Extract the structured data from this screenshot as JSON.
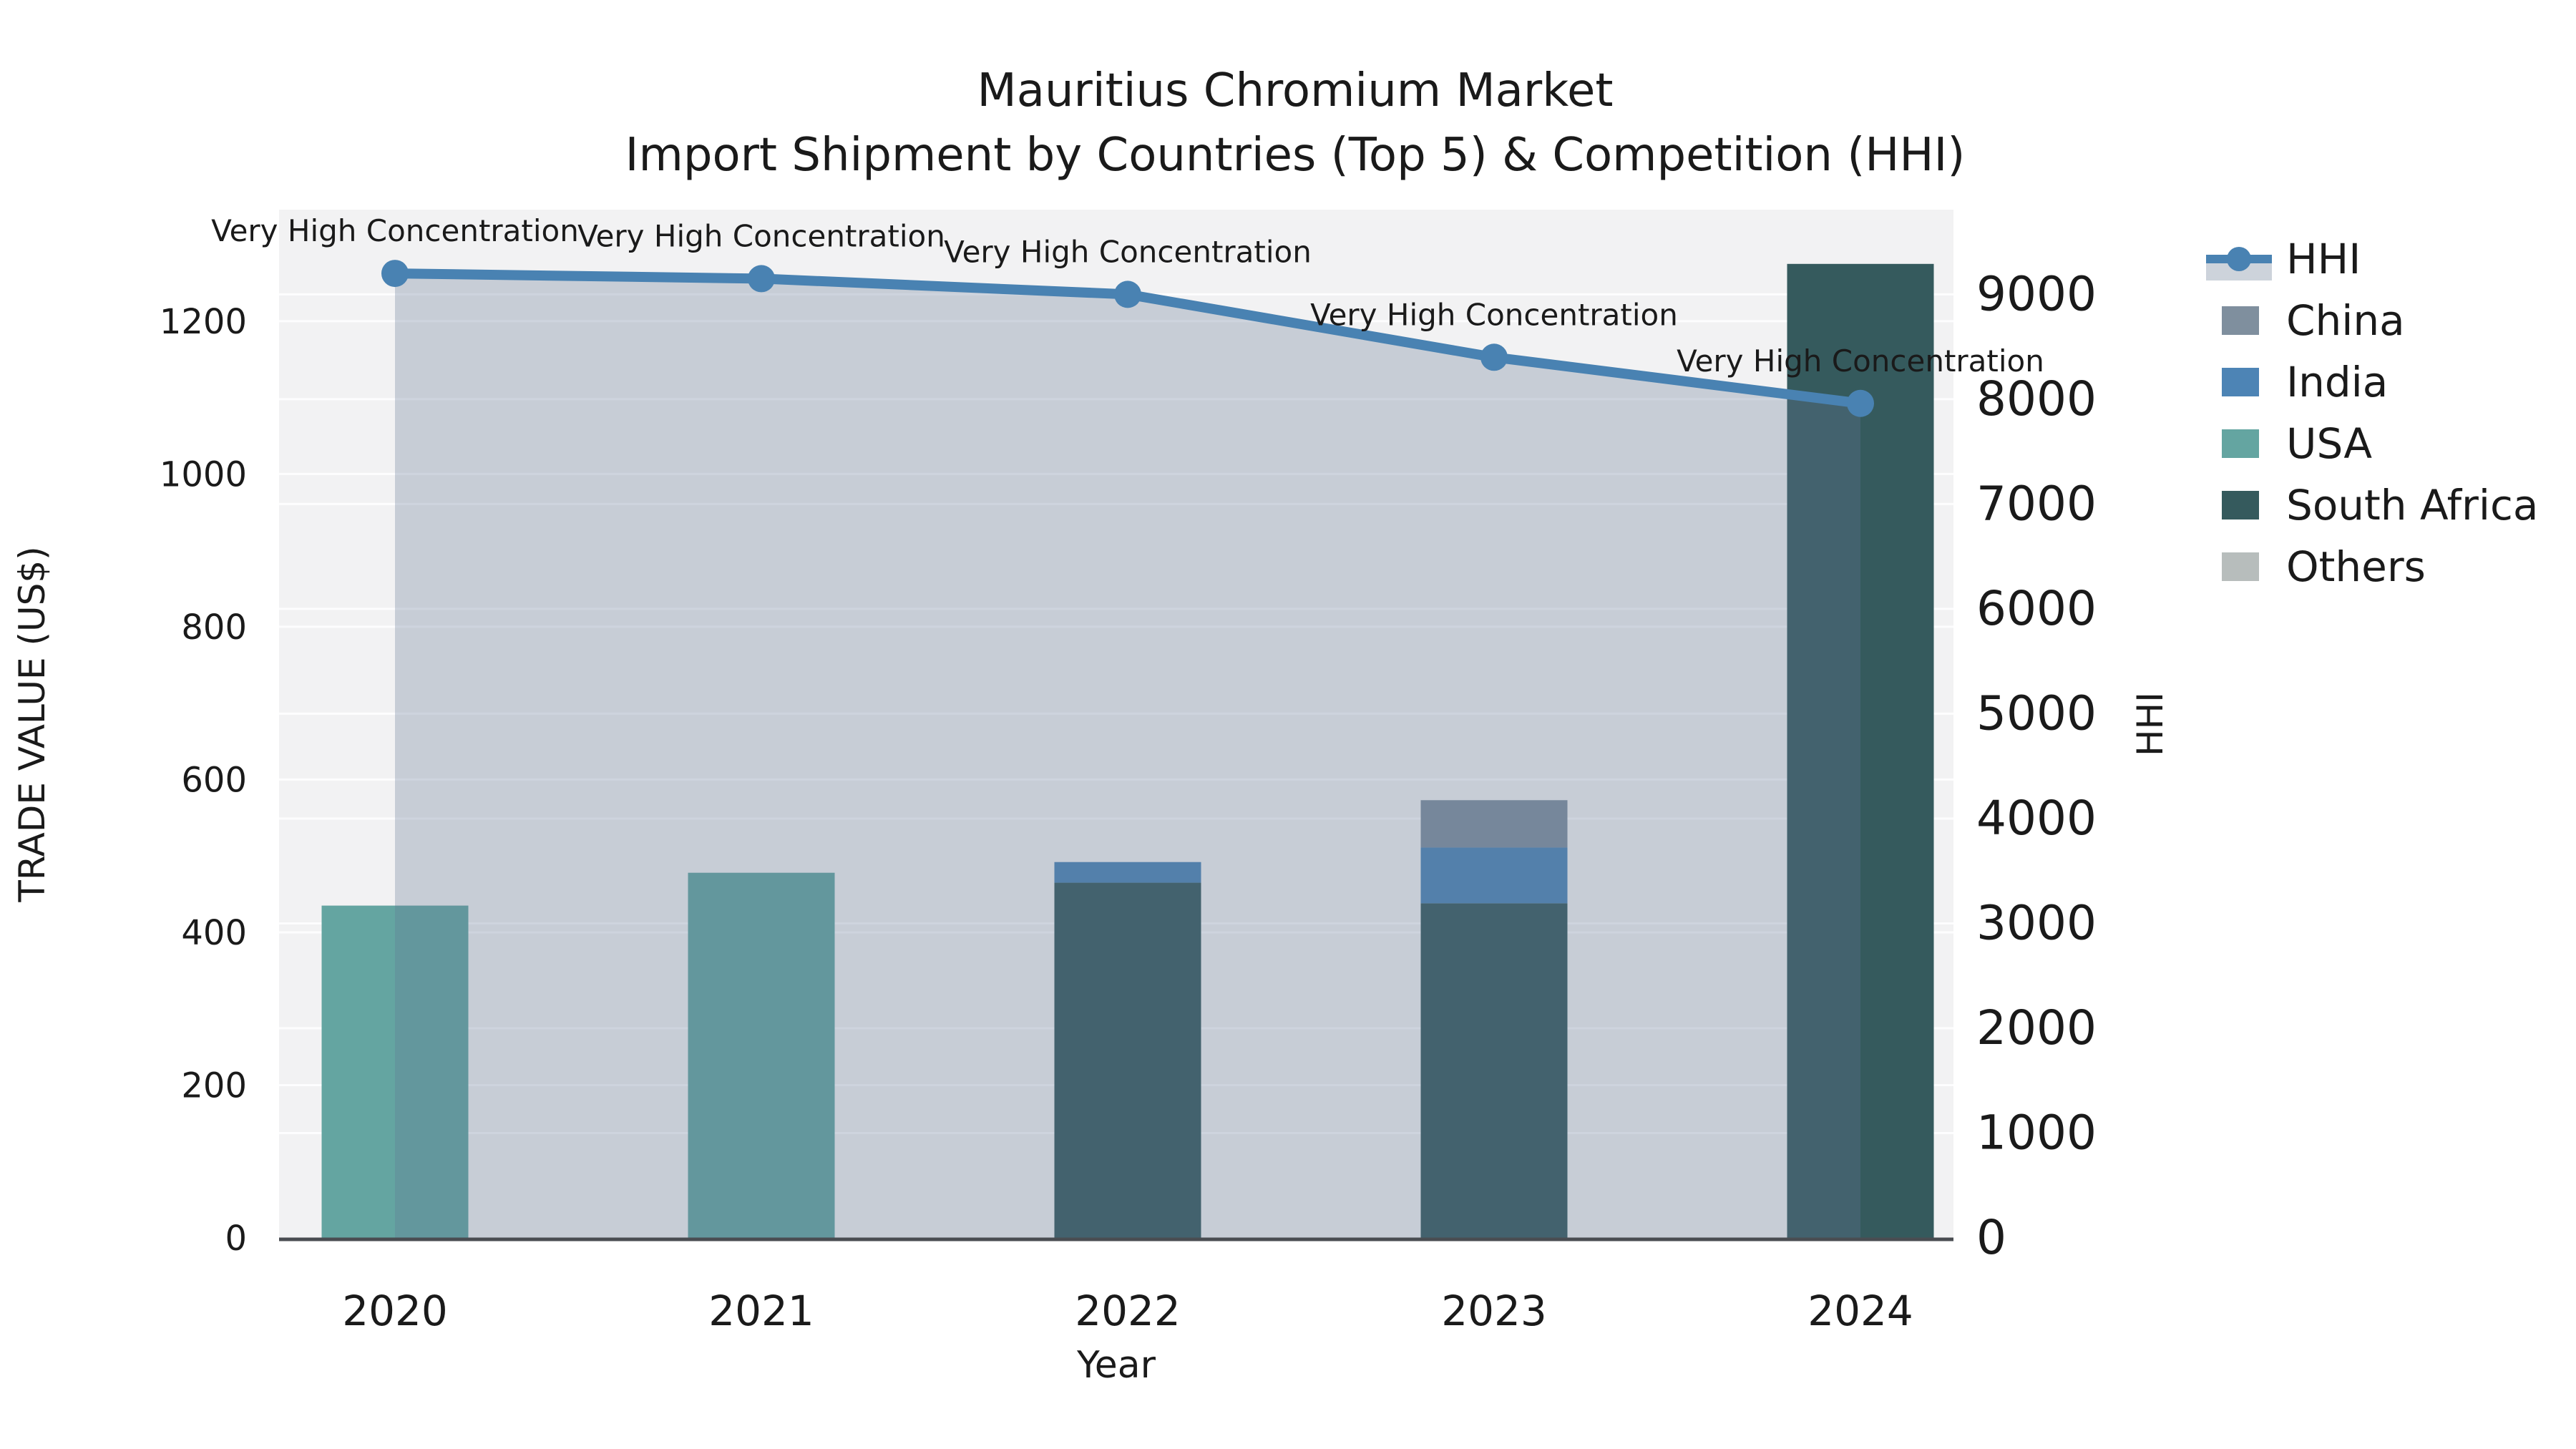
{
  "title": {
    "line1": "Mauritius Chromium Market",
    "line2": "Import Shipment by Countries (Top 5) & Competition (HHI)"
  },
  "colors": {
    "plot_bg": "#f2f2f3",
    "grid": "#fdfdfe",
    "axis_line": "#4a4d52",
    "text": "#1a1a1a",
    "hhi_line": "#4982b2",
    "hhi_area": "rgba(100,120,150,0.30)",
    "legend_hhi_band": "#cdd3db"
  },
  "chart_data": {
    "type": "bar",
    "title": "Mauritius Chromium Market",
    "subtitle": "Import Shipment by Countries (Top 5) & Competition (HHI)",
    "categories": [
      "2020",
      "2021",
      "2022",
      "2023",
      "2024"
    ],
    "xlabel": "Year",
    "left_axis": {
      "label": "TRADE VALUE (US$)",
      "ticks": [
        0,
        200,
        400,
        600,
        800,
        1000,
        1200
      ],
      "min": 0,
      "max": 1346
    },
    "right_axis": {
      "label": "HHI",
      "ticks": [
        0,
        1000,
        2000,
        3000,
        4000,
        5000,
        6000,
        7000,
        8000,
        9000
      ],
      "min": 0,
      "max": 9808
    },
    "bar_series": [
      {
        "name": "China",
        "color": "#7f8f9e",
        "values": [
          0,
          0,
          0,
          62,
          0
        ]
      },
      {
        "name": "India",
        "color": "#4d84b5",
        "values": [
          0,
          0,
          27,
          73,
          0
        ]
      },
      {
        "name": "USA",
        "color": "#64a5a1",
        "values": [
          435,
          478,
          0,
          0,
          0
        ]
      },
      {
        "name": "South Africa",
        "color": "#355a5d",
        "values": [
          0,
          0,
          465,
          438,
          1275
        ]
      },
      {
        "name": "Others",
        "color": "#b7bdbc",
        "values": [
          0,
          0,
          0,
          0,
          0
        ]
      }
    ],
    "stack_order_bottom_to_top": [
      "South Africa",
      "USA",
      "India",
      "China",
      "Others"
    ],
    "line_series": {
      "name": "HHI",
      "axis": "right",
      "color": "#4982b2",
      "values": [
        9200,
        9150,
        9000,
        8400,
        7960
      ]
    },
    "point_annotations": [
      "Very High Concentration",
      "Very High Concentration",
      "Very High Concentration",
      "Very High Concentration",
      "Very High Concentration"
    ],
    "legend": [
      "HHI",
      "China",
      "India",
      "USA",
      "South Africa",
      "Others"
    ],
    "legend_position": "right",
    "grid": true
  }
}
